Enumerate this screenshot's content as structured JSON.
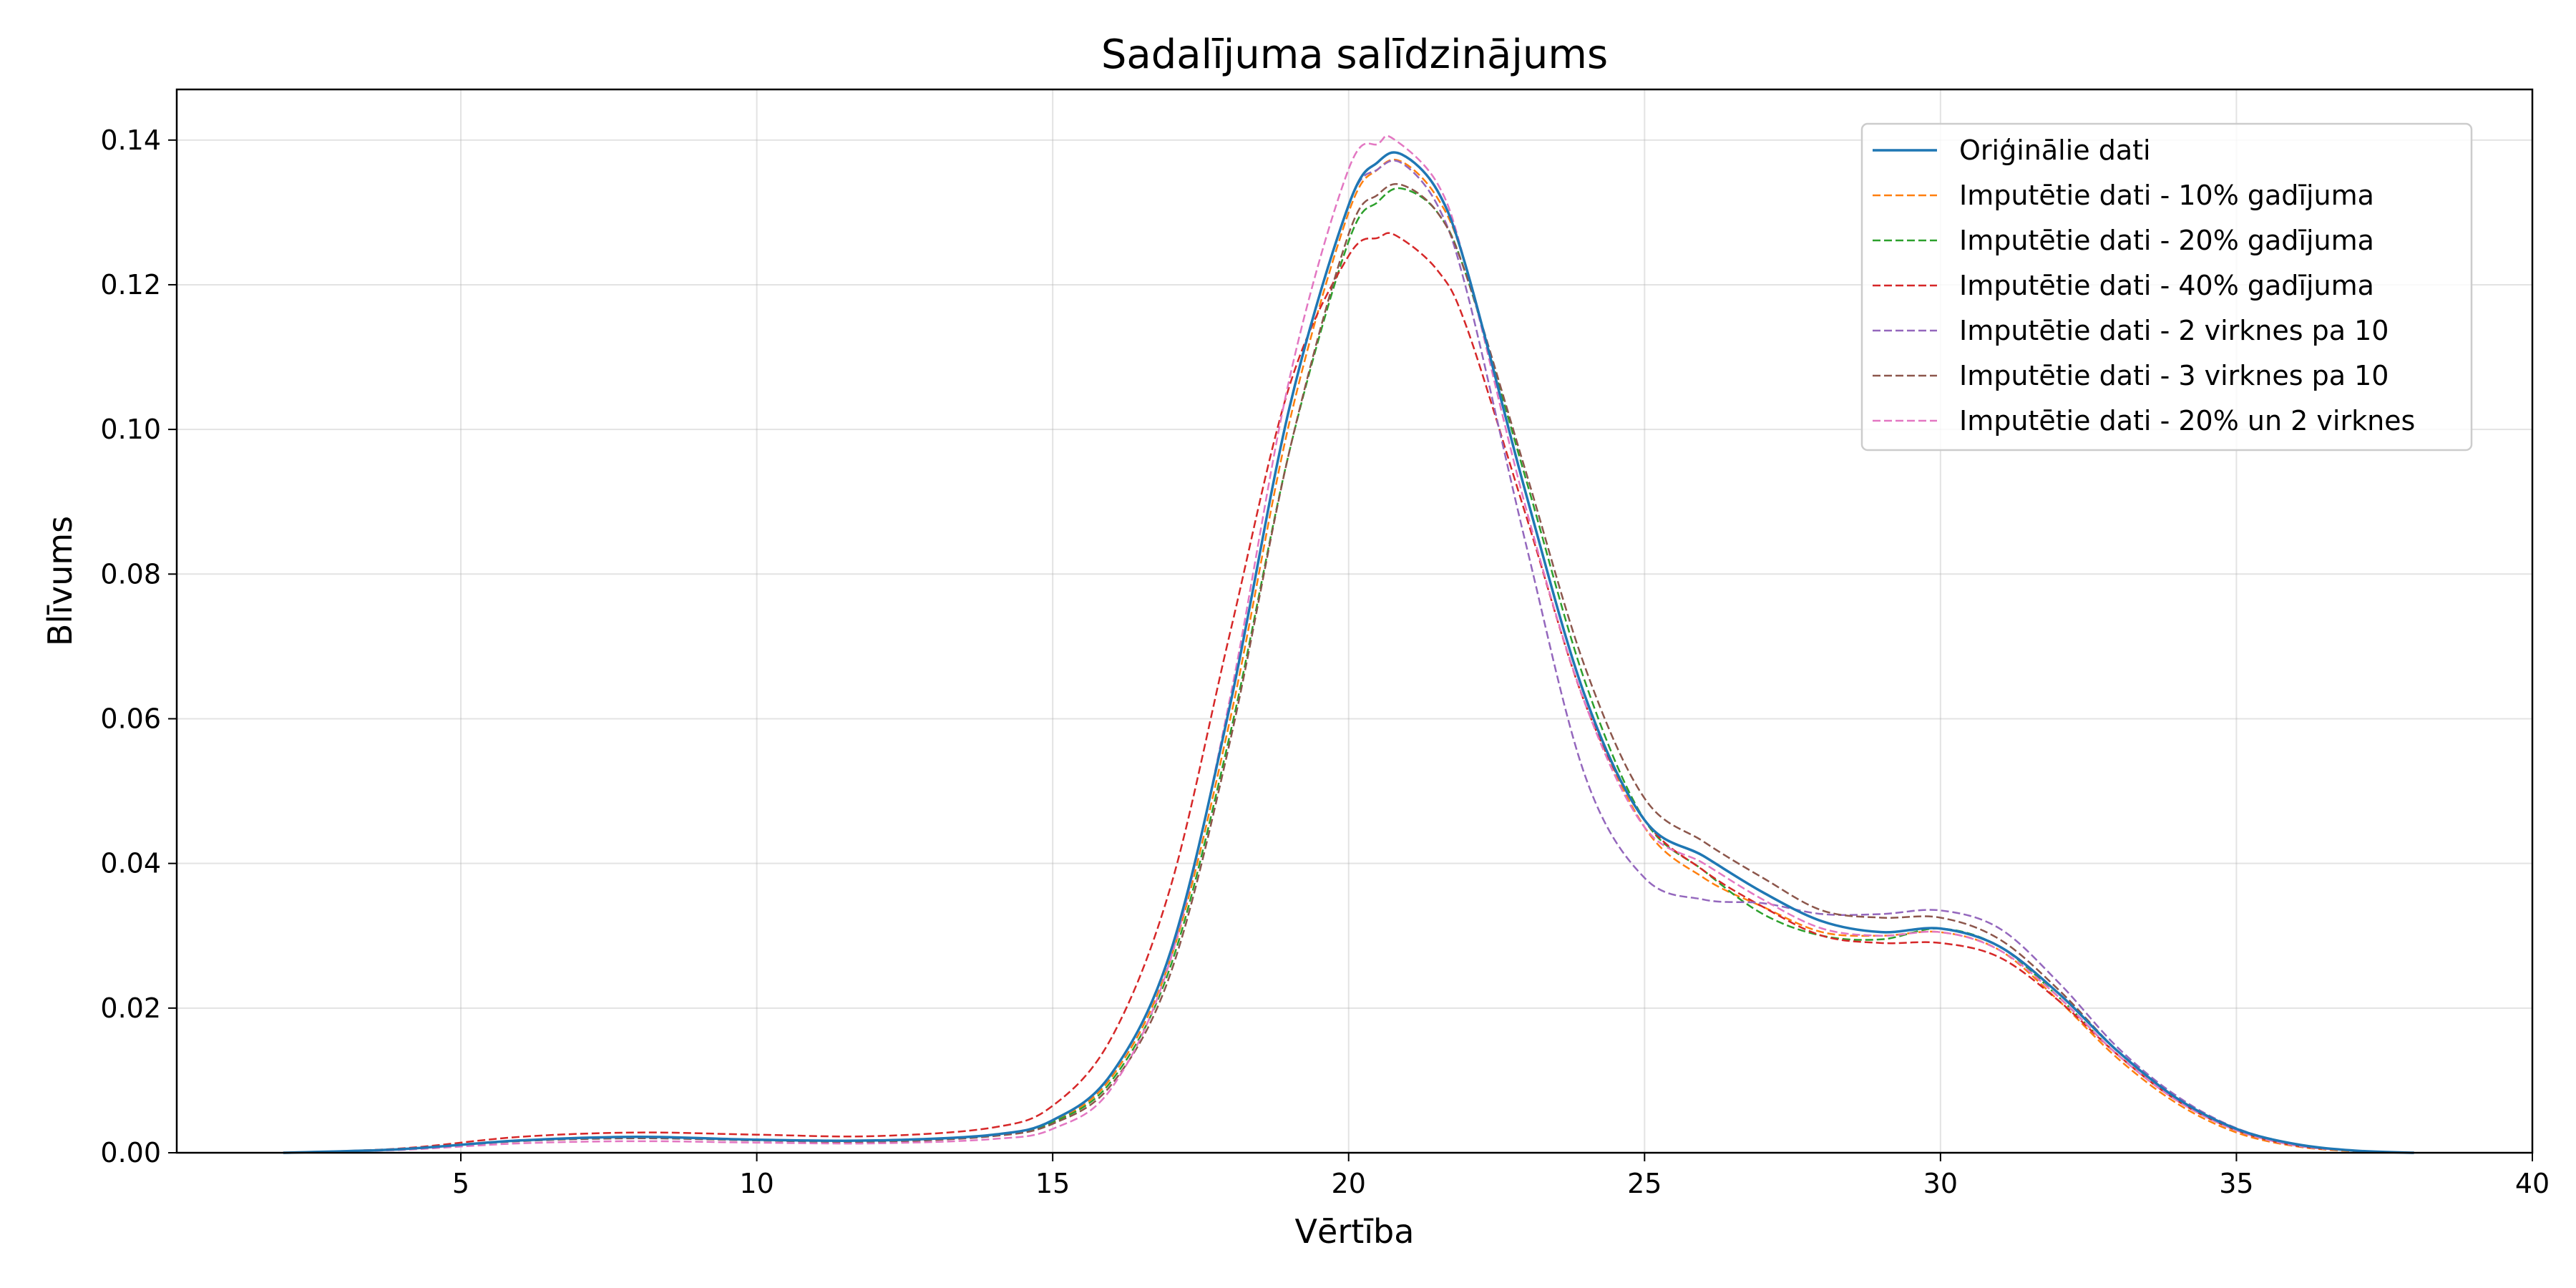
{
  "chart_data": {
    "type": "line",
    "title": "Sadalījuma salīdzinājums",
    "xlabel": "Vērtība",
    "ylabel": "Blīvums",
    "xlim": [
      0.2,
      40
    ],
    "ylim": [
      0,
      0.147
    ],
    "xticks": [
      5,
      10,
      15,
      20,
      25,
      30,
      35,
      40
    ],
    "xtick_labels": [
      "5",
      "10",
      "15",
      "20",
      "25",
      "30",
      "35",
      "40"
    ],
    "yticks": [
      0,
      0.02,
      0.04,
      0.06,
      0.08,
      0.1,
      0.12,
      0.14
    ],
    "ytick_labels": [
      "0.00",
      "0.02",
      "0.04",
      "0.06",
      "0.08",
      "0.10",
      "0.12",
      "0.14"
    ],
    "grid": true,
    "legend_position": "top-right",
    "series": [
      {
        "name": "Oriģinālie dati",
        "color": "#1f77b4",
        "style": "solid",
        "x": [
          2,
          4,
          6,
          8,
          10,
          12,
          14,
          15,
          16,
          17,
          18,
          19,
          20,
          20.5,
          20.9,
          21.5,
          22,
          23,
          24,
          25,
          26,
          27,
          28,
          29,
          30,
          31,
          32,
          33,
          34,
          35,
          36,
          37,
          38
        ],
        "y": [
          0,
          0.0005,
          0.0017,
          0.0022,
          0.0018,
          0.0017,
          0.0025,
          0.0045,
          0.011,
          0.028,
          0.062,
          0.103,
          0.131,
          0.137,
          0.138,
          0.133,
          0.122,
          0.091,
          0.063,
          0.046,
          0.041,
          0.036,
          0.032,
          0.0305,
          0.031,
          0.0285,
          0.022,
          0.014,
          0.0075,
          0.0033,
          0.0012,
          0.0003,
          0
        ]
      },
      {
        "name": "Imputētie dati - 10% gadījuma",
        "color": "#ff7f0e",
        "style": "dashed",
        "x": [
          2,
          4,
          6,
          8,
          10,
          12,
          14,
          15,
          16,
          17,
          18,
          19,
          20,
          20.5,
          20.9,
          21.5,
          22,
          23,
          24,
          25,
          26,
          27,
          28,
          29,
          30,
          31,
          32,
          33,
          34,
          35,
          36,
          37,
          38
        ],
        "y": [
          0,
          0.0005,
          0.0017,
          0.0021,
          0.0018,
          0.0016,
          0.0025,
          0.0043,
          0.0105,
          0.027,
          0.06,
          0.101,
          0.13,
          0.136,
          0.137,
          0.132,
          0.122,
          0.091,
          0.063,
          0.045,
          0.038,
          0.034,
          0.0305,
          0.03,
          0.0305,
          0.028,
          0.021,
          0.013,
          0.0068,
          0.0028,
          0.0009,
          0.0002,
          0
        ]
      },
      {
        "name": "Imputētie dati - 20% gadījuma",
        "color": "#2ca02c",
        "style": "dashed",
        "x": [
          2,
          4,
          6,
          8,
          10,
          12,
          14,
          15,
          16,
          17,
          18,
          19,
          20,
          20.5,
          20.9,
          21.5,
          22,
          23,
          24,
          25,
          26,
          27,
          28,
          29,
          30,
          31,
          32,
          33,
          34,
          35,
          36,
          37,
          38
        ],
        "y": [
          0,
          0.0005,
          0.0017,
          0.0021,
          0.0018,
          0.0016,
          0.0024,
          0.0042,
          0.01,
          0.026,
          0.058,
          0.097,
          0.126,
          0.1315,
          0.1333,
          0.13,
          0.121,
          0.093,
          0.065,
          0.046,
          0.039,
          0.033,
          0.03,
          0.0295,
          0.031,
          0.0285,
          0.0215,
          0.0135,
          0.0072,
          0.0031,
          0.001,
          0.0003,
          0
        ]
      },
      {
        "name": "Imputētie dati - 40% gadījuma",
        "color": "#d62728",
        "style": "dashed",
        "x": [
          2,
          4,
          6,
          8,
          10,
          12,
          14,
          15,
          16,
          17,
          18,
          19,
          20,
          20.5,
          20.8,
          21.5,
          22,
          23,
          24,
          25,
          26,
          27,
          28,
          29,
          30,
          31,
          32,
          33,
          34,
          35,
          36,
          37,
          38
        ],
        "y": [
          0,
          0.0006,
          0.0022,
          0.0028,
          0.0025,
          0.0023,
          0.0035,
          0.0065,
          0.016,
          0.037,
          0.072,
          0.106,
          0.124,
          0.1265,
          0.1268,
          0.122,
          0.114,
          0.088,
          0.062,
          0.046,
          0.039,
          0.034,
          0.03,
          0.029,
          0.029,
          0.027,
          0.021,
          0.0135,
          0.0072,
          0.0031,
          0.001,
          0.0003,
          0
        ]
      },
      {
        "name": "Imputētie dati - 2 virknes pa 10",
        "color": "#9467bd",
        "style": "dashed",
        "x": [
          2,
          4,
          6,
          8,
          10,
          12,
          14,
          15,
          16,
          17,
          18,
          19,
          20,
          20.5,
          20.9,
          21.5,
          22,
          23,
          24,
          25,
          26,
          27,
          28,
          29,
          30,
          31,
          32,
          33,
          34,
          35,
          36,
          37,
          38
        ],
        "y": [
          0,
          0.0005,
          0.0017,
          0.0021,
          0.0017,
          0.0016,
          0.0025,
          0.0045,
          0.011,
          0.028,
          0.062,
          0.103,
          0.131,
          0.136,
          0.1368,
          0.131,
          0.119,
          0.084,
          0.052,
          0.038,
          0.035,
          0.0345,
          0.033,
          0.033,
          0.0335,
          0.031,
          0.0235,
          0.0145,
          0.0078,
          0.0034,
          0.0012,
          0.0003,
          0
        ]
      },
      {
        "name": "Imputētie dati - 3 virknes pa 10",
        "color": "#8c564b",
        "style": "dashed",
        "x": [
          2,
          4,
          6,
          8,
          10,
          12,
          14,
          15,
          16,
          17,
          18,
          19,
          20,
          20.5,
          20.9,
          21.5,
          22,
          23,
          24,
          25,
          26,
          27,
          28,
          29,
          30,
          31,
          32,
          33,
          34,
          35,
          36,
          37,
          38
        ],
        "y": [
          0,
          0.0005,
          0.0016,
          0.002,
          0.0017,
          0.0015,
          0.0023,
          0.004,
          0.0095,
          0.025,
          0.057,
          0.097,
          0.127,
          0.1325,
          0.1338,
          0.13,
          0.121,
          0.094,
          0.067,
          0.049,
          0.043,
          0.038,
          0.0335,
          0.0325,
          0.0325,
          0.0295,
          0.0225,
          0.014,
          0.0075,
          0.0032,
          0.0011,
          0.0003,
          0
        ]
      },
      {
        "name": "Imputētie dati - 20% un 2 virknes",
        "color": "#e377c2",
        "style": "dashed",
        "x": [
          2,
          4,
          6,
          8,
          10,
          12,
          14,
          15,
          16,
          17,
          18,
          19,
          20,
          20.5,
          20.75,
          21.5,
          22,
          23,
          24,
          25,
          26,
          27,
          28,
          29,
          30,
          31,
          32,
          33,
          34,
          35,
          36,
          37,
          38
        ],
        "y": [
          0,
          0.0004,
          0.0013,
          0.0016,
          0.0014,
          0.0013,
          0.0019,
          0.0033,
          0.009,
          0.027,
          0.063,
          0.107,
          0.136,
          0.1395,
          0.1402,
          0.134,
          0.122,
          0.089,
          0.062,
          0.045,
          0.04,
          0.035,
          0.031,
          0.03,
          0.0305,
          0.028,
          0.0215,
          0.0135,
          0.0072,
          0.0031,
          0.001,
          0.0003,
          0
        ]
      }
    ]
  }
}
